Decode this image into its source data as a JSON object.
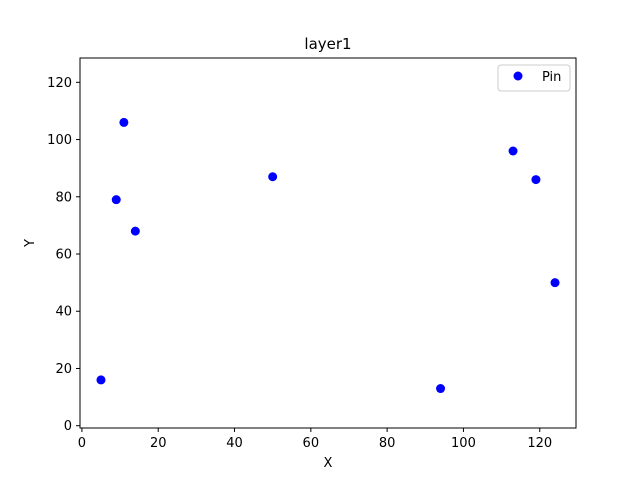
{
  "chart_data": {
    "type": "scatter",
    "title": "layer1",
    "xlabel": "X",
    "ylabel": "Y",
    "xlim": [
      -0.5,
      129.5
    ],
    "ylim": [
      -0.8,
      128.5
    ],
    "xticks": [
      0,
      20,
      40,
      60,
      80,
      100,
      120
    ],
    "yticks": [
      0,
      20,
      40,
      60,
      80,
      100,
      120
    ],
    "grid": false,
    "legend": {
      "placement": "top-right"
    },
    "series": [
      {
        "name": "Pin",
        "color": "#0000ff",
        "marker": "circle",
        "points": [
          {
            "x": 5,
            "y": 16
          },
          {
            "x": 9,
            "y": 79
          },
          {
            "x": 11,
            "y": 106
          },
          {
            "x": 14,
            "y": 68
          },
          {
            "x": 50,
            "y": 87
          },
          {
            "x": 94,
            "y": 13
          },
          {
            "x": 113,
            "y": 96
          },
          {
            "x": 119,
            "y": 86
          },
          {
            "x": 124,
            "y": 50
          }
        ]
      }
    ]
  }
}
